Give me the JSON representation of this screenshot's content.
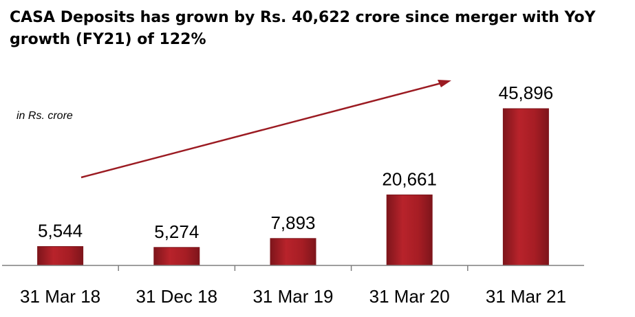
{
  "chart_data": {
    "type": "bar",
    "title": "CASA Deposits has grown by Rs. 40,622 crore since merger with YoY growth (FY21) of 122%",
    "unit_note": "in Rs. crore",
    "categories": [
      "31 Mar 18",
      "31 Dec 18",
      "31 Mar 19",
      "31 Mar 20",
      "31 Mar 21"
    ],
    "values": [
      5544,
      5274,
      7893,
      20661,
      45896
    ],
    "value_labels": [
      "5,544",
      "5,274",
      "7,893",
      "20,661",
      "45,896"
    ],
    "ylim": [
      0,
      50000
    ],
    "grid": false,
    "legend": "none",
    "colors": {
      "bar": "#a61d24",
      "bar_dark": "#7e151b",
      "arrow": "#9b1b22",
      "axis": "#7f7f7f"
    }
  }
}
